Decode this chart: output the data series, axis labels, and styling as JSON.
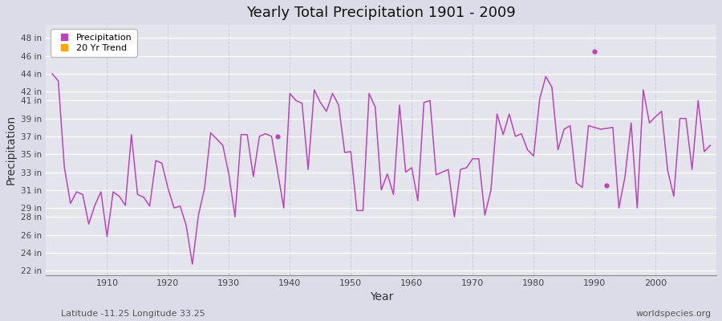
{
  "title": "Yearly Total Precipitation 1901 - 2009",
  "xlabel": "Year",
  "ylabel": "Precipitation",
  "footnote_left": "Latitude -11.25 Longitude 33.25",
  "footnote_right": "worldspecies.org",
  "line_color": "#BB44BB",
  "trend_color": "#FFA500",
  "bg_color": "#E4E4EC",
  "grid_color_h": "#FFFFFF",
  "grid_color_v": "#CCCCDD",
  "xlim": [
    1900,
    2010
  ],
  "ylim": [
    21.5,
    49.5
  ],
  "ytick_vals": [
    22,
    24,
    26,
    28,
    29,
    31,
    33,
    35,
    37,
    39,
    41,
    42,
    44,
    46,
    48
  ],
  "xticks": [
    1910,
    1920,
    1930,
    1940,
    1950,
    1960,
    1970,
    1980,
    1990,
    2000
  ],
  "years": [
    1901,
    1902,
    1903,
    1904,
    1905,
    1906,
    1907,
    1908,
    1909,
    1910,
    1911,
    1912,
    1913,
    1914,
    1915,
    1916,
    1917,
    1918,
    1919,
    1920,
    1921,
    1922,
    1923,
    1924,
    1925,
    1926,
    1927,
    1928,
    1929,
    1930,
    1931,
    1932,
    1933,
    1934,
    1935,
    1936,
    1937,
    1939,
    1940,
    1941,
    1942,
    1943,
    1944,
    1945,
    1946,
    1947,
    1948,
    1949,
    1950,
    1951,
    1952,
    1953,
    1954,
    1955,
    1956,
    1957,
    1958,
    1959,
    1960,
    1961,
    1962,
    1963,
    1964,
    1965,
    1966,
    1967,
    1968,
    1969,
    1970,
    1971,
    1972,
    1973,
    1974,
    1975,
    1976,
    1977,
    1978,
    1979,
    1980,
    1981,
    1982,
    1983,
    1984,
    1985,
    1986,
    1987,
    1988,
    1989,
    1991,
    1993,
    1994,
    1995,
    1996,
    1997,
    1998,
    1999,
    2000,
    2001,
    2002,
    2003,
    2004,
    2005,
    2006,
    2007,
    2008,
    2009
  ],
  "precip": [
    44.0,
    43.2,
    33.5,
    29.5,
    30.8,
    30.5,
    27.2,
    29.3,
    30.8,
    25.8,
    30.8,
    30.3,
    29.3,
    37.2,
    30.5,
    30.2,
    29.2,
    34.3,
    34.0,
    31.2,
    29.0,
    29.2,
    27.0,
    22.7,
    28.2,
    31.2,
    37.4,
    36.7,
    36.0,
    32.7,
    28.0,
    37.2,
    37.2,
    32.5,
    37.0,
    37.3,
    37.0,
    29.0,
    41.8,
    41.0,
    40.7,
    33.3,
    42.2,
    40.8,
    39.8,
    41.8,
    40.5,
    35.2,
    35.3,
    28.7,
    28.7,
    41.8,
    40.3,
    31.0,
    32.8,
    30.5,
    40.5,
    33.0,
    33.5,
    29.8,
    40.8,
    41.0,
    32.7,
    33.0,
    33.3,
    28.0,
    33.3,
    33.5,
    34.5,
    34.5,
    28.2,
    31.0,
    39.5,
    37.2,
    39.5,
    37.0,
    37.3,
    35.5,
    34.8,
    41.2,
    43.7,
    42.5,
    35.5,
    37.8,
    38.2,
    31.8,
    31.3,
    38.2,
    37.8,
    38.0,
    29.0,
    32.5,
    38.5,
    29.0,
    42.2,
    38.5,
    39.2,
    39.8,
    33.2,
    30.3,
    39.0,
    39.0,
    33.3,
    41.0,
    35.3,
    36.0
  ],
  "isolated": [
    {
      "year": 1938,
      "value": 37.0
    },
    {
      "year": 1990,
      "value": 46.5
    },
    {
      "year": 1992,
      "value": 31.5
    }
  ]
}
